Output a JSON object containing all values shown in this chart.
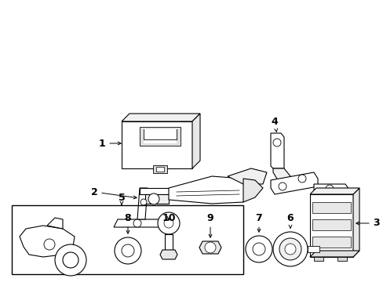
{
  "background_color": "#ffffff",
  "line_color": "#000000",
  "text_color": "#000000",
  "label_fontsize": 9,
  "fig_width": 4.89,
  "fig_height": 3.6,
  "dpi": 100
}
